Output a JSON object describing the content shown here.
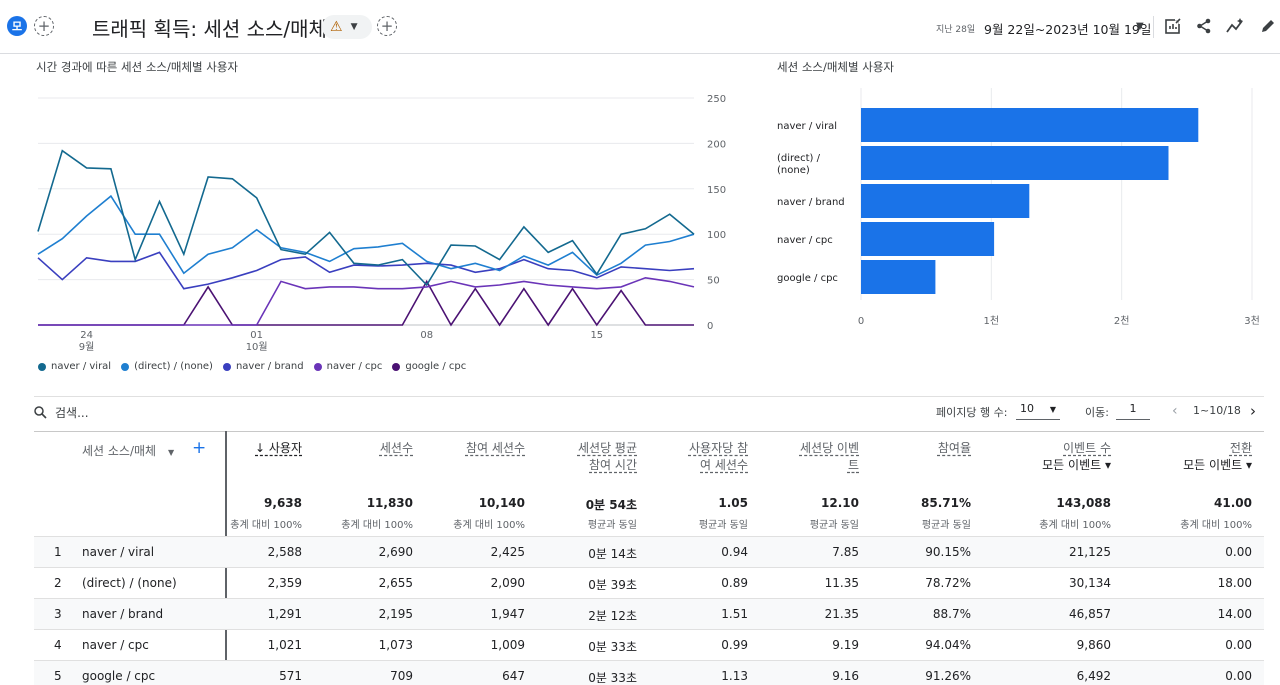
{
  "header": {
    "avatar_letter": "모",
    "title": "트래픽 획득: 세션 소스/매체",
    "warning_icon": "⚠",
    "date_label_small": "지난 28일",
    "date_range": "9월 22일~2023년 10월 19일"
  },
  "line_chart": {
    "title": "시간 경과에 따른 세션 소스/매체별 사용자",
    "y_ticks": [
      "250",
      "200",
      "150",
      "100",
      "50",
      "0"
    ],
    "x_ticks": [
      {
        "day": "24",
        "month": "9월"
      },
      {
        "day": "01",
        "month": "10월"
      },
      {
        "day": "08",
        "month": ""
      },
      {
        "day": "15",
        "month": ""
      }
    ],
    "legend": [
      {
        "label": "naver / viral",
        "color": "#13698f"
      },
      {
        "label": "(direct) / (none)",
        "color": "#1f7fd0"
      },
      {
        "label": "naver / brand",
        "color": "#3a3fbf"
      },
      {
        "label": "naver / cpc",
        "color": "#6a34b8"
      },
      {
        "label": "google / cpc",
        "color": "#4b1273"
      }
    ]
  },
  "chart_data": [
    {
      "type": "line",
      "title": "시간 경과에 따른 세션 소스/매체별 사용자",
      "x": [
        "09-22",
        "09-23",
        "09-24",
        "09-25",
        "09-26",
        "09-27",
        "09-28",
        "09-29",
        "09-30",
        "10-01",
        "10-02",
        "10-03",
        "10-04",
        "10-05",
        "10-06",
        "10-07",
        "10-08",
        "10-09",
        "10-10",
        "10-11",
        "10-12",
        "10-13",
        "10-14",
        "10-15",
        "10-16",
        "10-17",
        "10-18",
        "10-19"
      ],
      "ylim": [
        0,
        250
      ],
      "series": [
        {
          "name": "naver / viral",
          "color": "#13698f",
          "values": [
            103,
            192,
            173,
            172,
            72,
            136,
            78,
            163,
            161,
            140,
            83,
            78,
            102,
            68,
            66,
            72,
            44,
            88,
            87,
            72,
            108,
            80,
            93,
            56,
            100,
            106,
            122,
            100
          ]
        },
        {
          "name": "(direct) / (none)",
          "color": "#1f7fd0",
          "values": [
            78,
            95,
            120,
            142,
            100,
            100,
            57,
            78,
            85,
            105,
            85,
            80,
            70,
            84,
            86,
            90,
            70,
            62,
            68,
            60,
            76,
            66,
            80,
            55,
            68,
            88,
            92,
            100
          ]
        },
        {
          "name": "naver / brand",
          "color": "#3a3fbf",
          "values": [
            74,
            50,
            74,
            70,
            70,
            80,
            40,
            45,
            52,
            60,
            72,
            75,
            58,
            66,
            65,
            66,
            68,
            66,
            58,
            62,
            72,
            62,
            60,
            52,
            64,
            62,
            60,
            62
          ]
        },
        {
          "name": "naver / cpc",
          "color": "#6a34b8",
          "values": [
            0,
            0,
            0,
            0,
            0,
            0,
            0,
            0,
            0,
            0,
            48,
            40,
            42,
            42,
            40,
            40,
            42,
            48,
            42,
            44,
            48,
            44,
            42,
            40,
            42,
            52,
            48,
            42
          ]
        },
        {
          "name": "google / cpc",
          "color": "#4b1273",
          "values": [
            0,
            0,
            0,
            0,
            0,
            0,
            0,
            42,
            0,
            0,
            0,
            0,
            0,
            0,
            0,
            0,
            48,
            0,
            40,
            0,
            40,
            0,
            40,
            0,
            38,
            0,
            0,
            0
          ]
        }
      ]
    },
    {
      "type": "bar",
      "title": "세션 소스/매체별 사용자",
      "categories": [
        "naver / viral",
        "(direct) / (none)",
        "naver / brand",
        "naver / cpc",
        "google / cpc"
      ],
      "values": [
        2588,
        2359,
        1291,
        1021,
        571
      ],
      "xlim": [
        0,
        3000
      ],
      "x_ticks": [
        "0",
        "1천",
        "2천",
        "3천"
      ],
      "color": "#1a73e8"
    }
  ],
  "bar_chart": {
    "title": "세션 소스/매체별 사용자",
    "labels": [
      [
        "naver / viral"
      ],
      [
        "(direct) /",
        "(none)"
      ],
      [
        "naver / brand"
      ],
      [
        "naver / cpc"
      ],
      [
        "google / cpc"
      ]
    ],
    "x_ticks": [
      "0",
      "1천",
      "2천",
      "3천"
    ]
  },
  "table_controls": {
    "search_placeholder": "검색...",
    "rows_per_page_label": "페이지당 행 수:",
    "rows_per_page_value": "10",
    "goto_label": "이동:",
    "goto_value": "1",
    "range_label": "1~10/18"
  },
  "table": {
    "dimension_header": "세션 소스/매체",
    "headers": [
      {
        "line1": "↓ 사용자",
        "line2": ""
      },
      {
        "line1": "세션수",
        "line2": ""
      },
      {
        "line1": "참여 세션수",
        "line2": ""
      },
      {
        "line1": "세션당 평균",
        "line2": "참여 시간"
      },
      {
        "line1": "사용자당 참",
        "line2": "여 세션수"
      },
      {
        "line1": "세션당 이벤",
        "line2": "트"
      },
      {
        "line1": "참여율",
        "line2": ""
      },
      {
        "line1": "이벤트 수",
        "line2": "모든 이벤트 ▾"
      },
      {
        "line1": "전환",
        "line2": "모든 이벤트 ▾"
      }
    ],
    "totals": [
      {
        "value": "9,638",
        "sub": "총계 대비 100%"
      },
      {
        "value": "11,830",
        "sub": "총계 대비 100%"
      },
      {
        "value": "10,140",
        "sub": "총계 대비 100%"
      },
      {
        "value": "0분 54초",
        "sub": "평균과 동일"
      },
      {
        "value": "1.05",
        "sub": "평균과 동일"
      },
      {
        "value": "12.10",
        "sub": "평균과 동일"
      },
      {
        "value": "85.71%",
        "sub": "평균과 동일"
      },
      {
        "value": "143,088",
        "sub": "총계 대비 100%"
      },
      {
        "value": "41.00",
        "sub": "총계 대비 100%"
      }
    ],
    "rows": [
      {
        "idx": "1",
        "name": "naver / viral",
        "vals": [
          "2,588",
          "2,690",
          "2,425",
          "0분 14초",
          "0.94",
          "7.85",
          "90.15%",
          "21,125",
          "0.00"
        ]
      },
      {
        "idx": "2",
        "name": "(direct) / (none)",
        "vals": [
          "2,359",
          "2,655",
          "2,090",
          "0분 39초",
          "0.89",
          "11.35",
          "78.72%",
          "30,134",
          "18.00"
        ]
      },
      {
        "idx": "3",
        "name": "naver / brand",
        "vals": [
          "1,291",
          "2,195",
          "1,947",
          "2분 12초",
          "1.51",
          "21.35",
          "88.7%",
          "46,857",
          "14.00"
        ]
      },
      {
        "idx": "4",
        "name": "naver / cpc",
        "vals": [
          "1,021",
          "1,073",
          "1,009",
          "0분 33초",
          "0.99",
          "9.19",
          "94.04%",
          "9,860",
          "0.00"
        ]
      },
      {
        "idx": "5",
        "name": "google / cpc",
        "vals": [
          "571",
          "709",
          "647",
          "0분 33초",
          "1.13",
          "9.16",
          "91.26%",
          "6,492",
          "0.00"
        ]
      }
    ]
  }
}
